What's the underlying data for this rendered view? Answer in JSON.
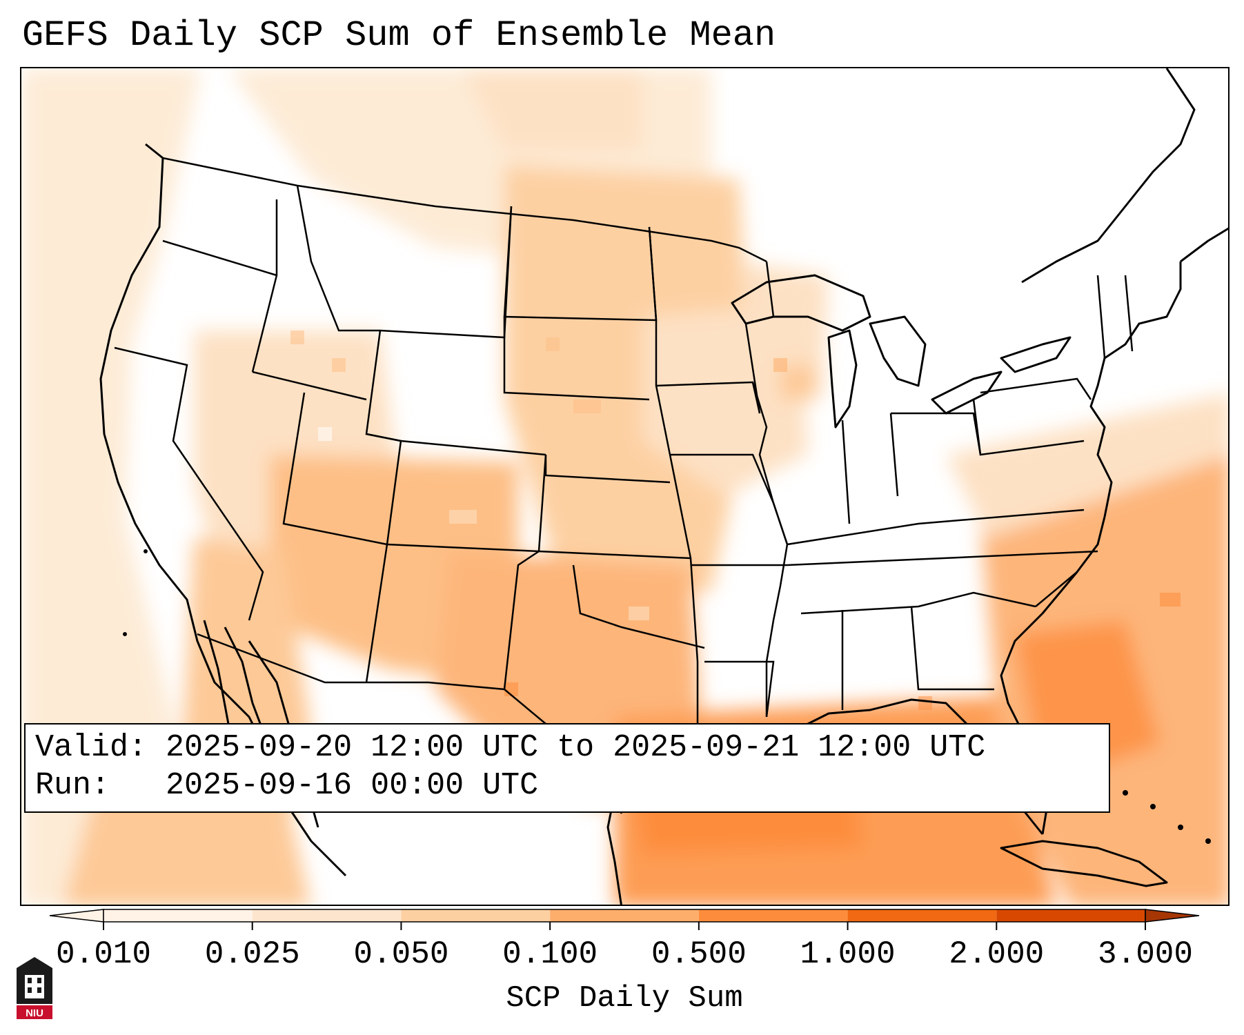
{
  "title": "GEFS Daily SCP Sum of Ensemble Mean",
  "info": {
    "valid_label": "Valid:",
    "valid_value": "2025-09-20 12:00 UTC to 2025-09-21 12:00 UTC",
    "run_label": "Run:",
    "run_value": "2025-09-16 00:00 UTC"
  },
  "colorbar": {
    "label": "SCP Daily Sum",
    "ticks": [
      "0.010",
      "0.025",
      "0.050",
      "0.100",
      "0.500",
      "1.000",
      "2.000",
      "3.000"
    ],
    "colors": [
      "#fff2e6",
      "#fde5cd",
      "#fdd0a2",
      "#fdae6b",
      "#fd8d3c",
      "#f16913",
      "#d94801",
      "#a63603"
    ],
    "extend": "both"
  },
  "logo": {
    "text": "NIU"
  }
}
